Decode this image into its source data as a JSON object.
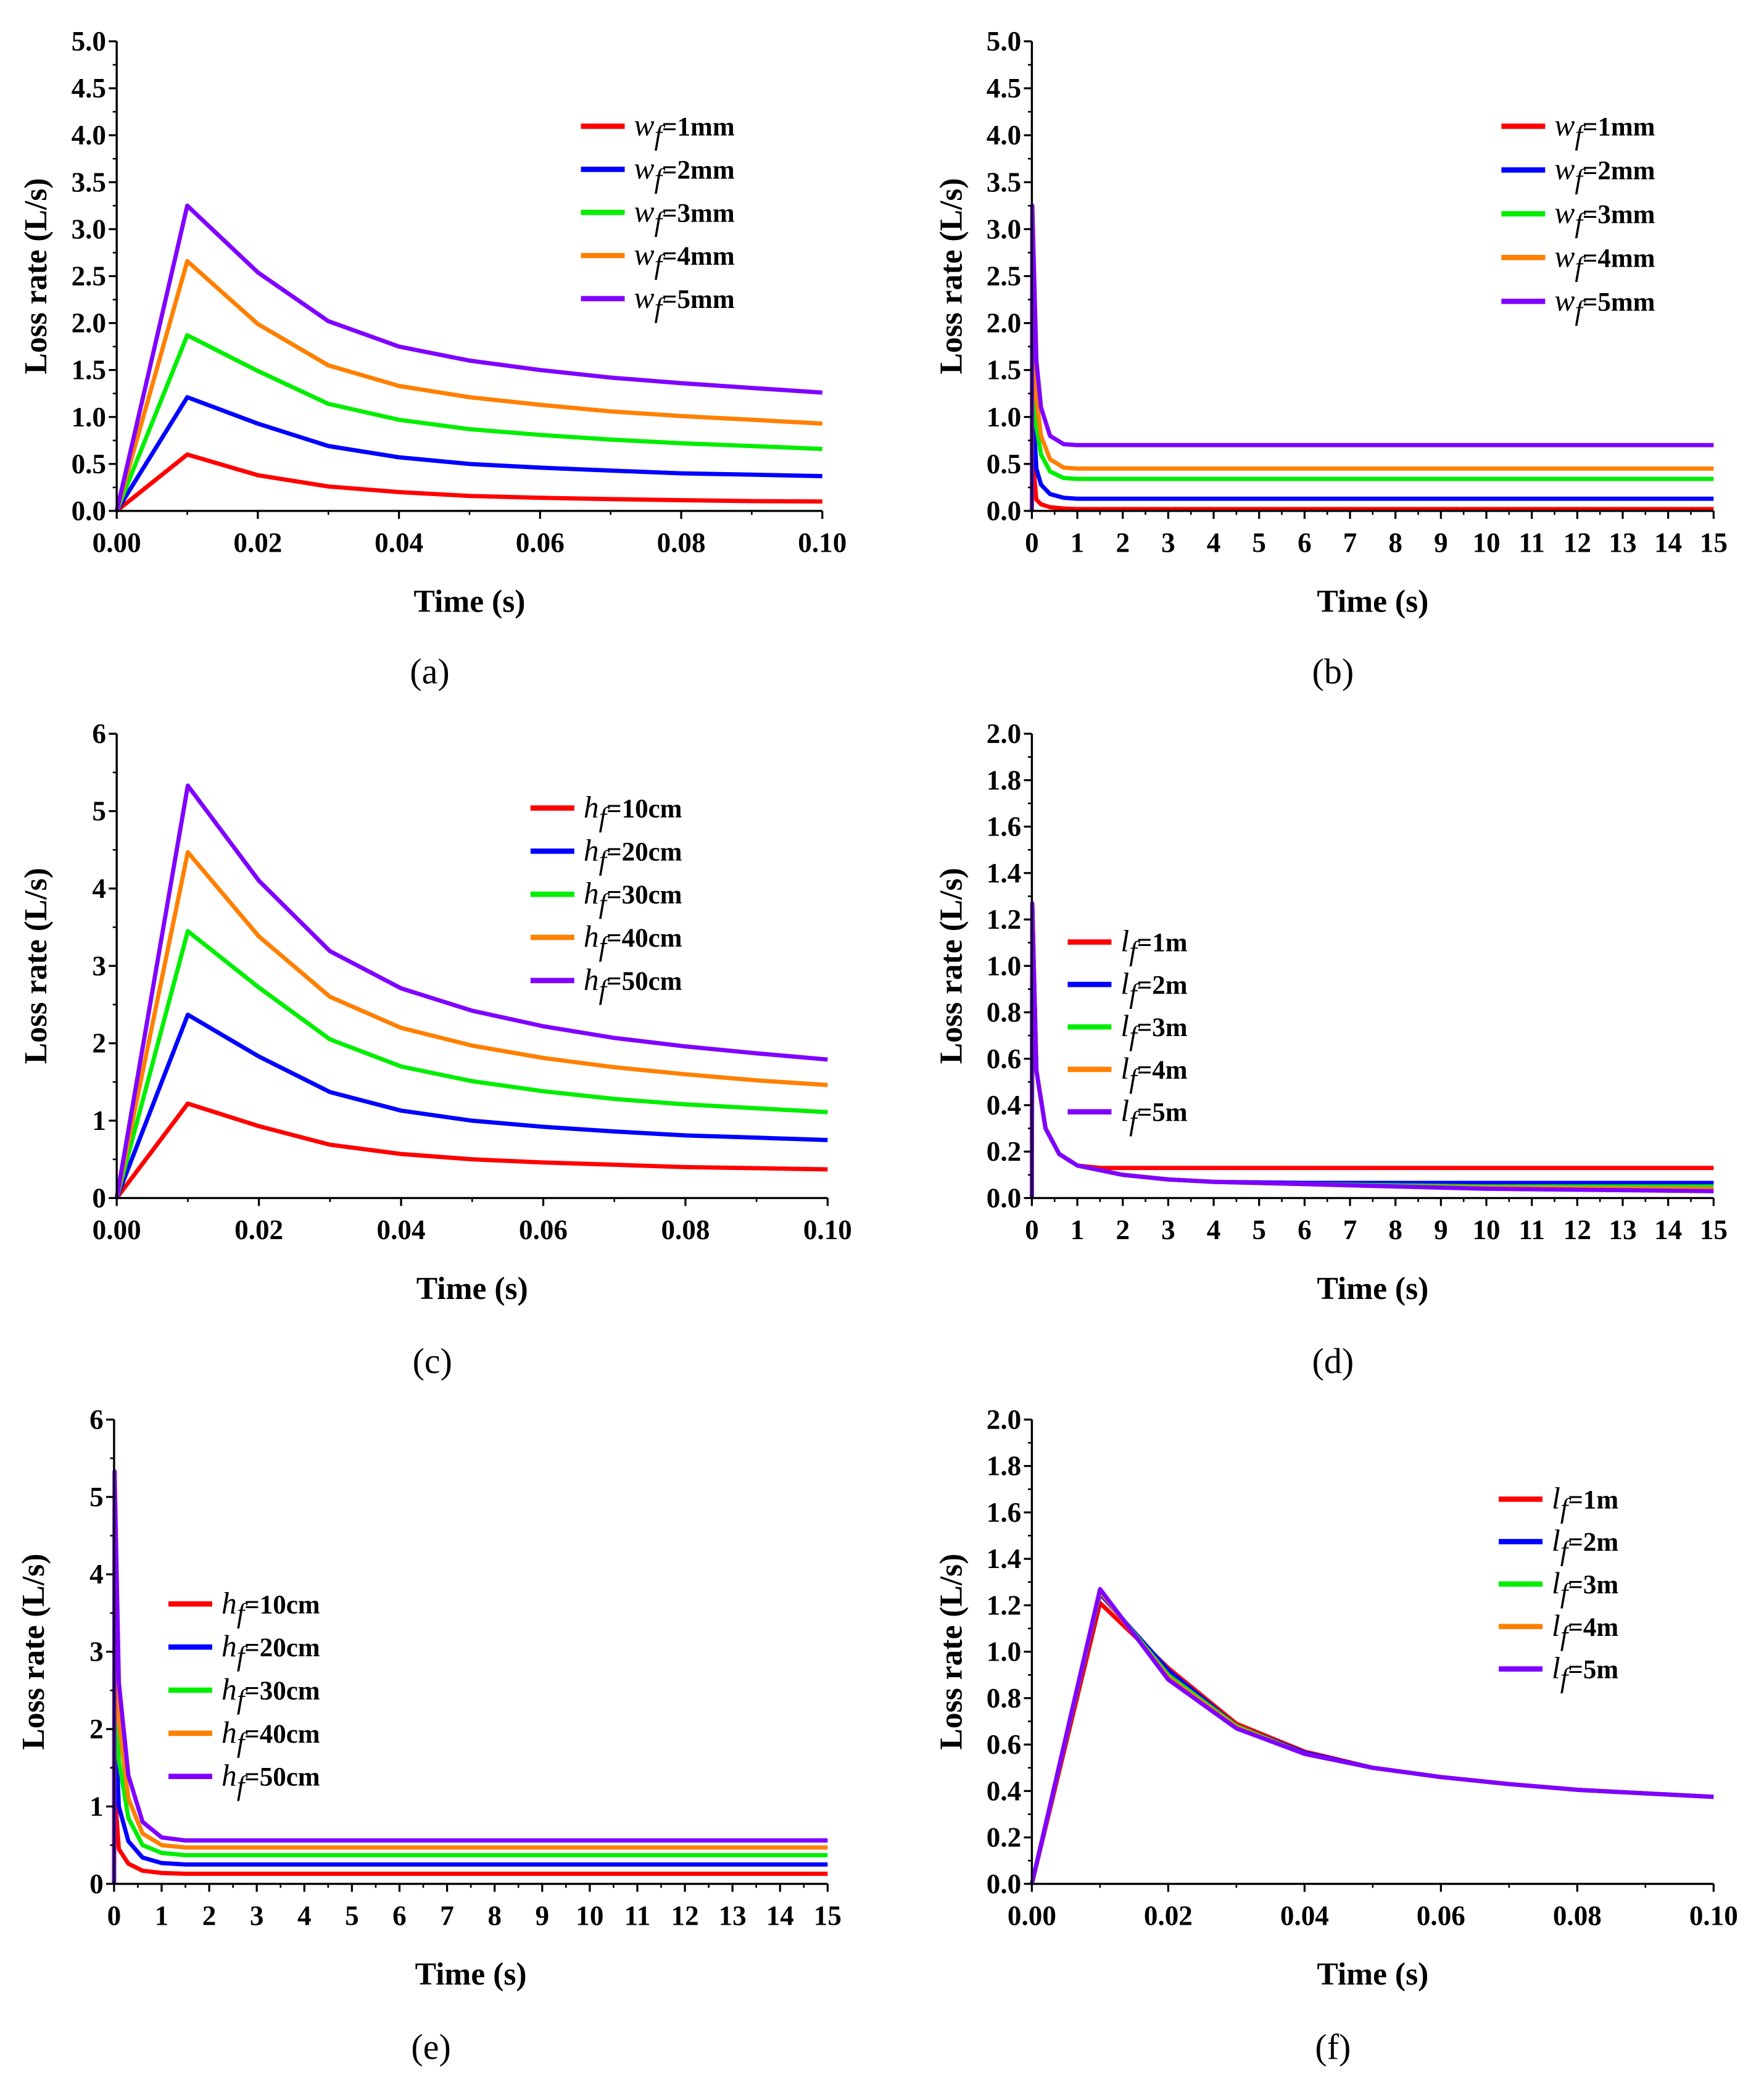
{
  "colors": [
    "#ff0000",
    "#0000ff",
    "#00ee00",
    "#ff8000",
    "#8000ff"
  ],
  "chart_data": [
    {
      "panel": "(a)",
      "type": "line",
      "xlabel": "Time (s)",
      "ylabel": "Loss rate (L/s)",
      "xlim": [
        0,
        0.1
      ],
      "ylim": [
        0,
        5
      ],
      "xticks": [
        "0.00",
        "0.02",
        "0.04",
        "0.06",
        "0.08",
        "0.10"
      ],
      "yticks": [
        "0.0",
        "0.5",
        "1.0",
        "1.5",
        "2.0",
        "2.5",
        "3.0",
        "3.5",
        "4.0",
        "4.5",
        "5.0"
      ],
      "legend_position": "top-right",
      "x": [
        0,
        0.01,
        0.02,
        0.03,
        0.04,
        0.05,
        0.06,
        0.07,
        0.08,
        0.09,
        0.1
      ],
      "series": [
        {
          "var": "w",
          "sub": "f",
          "suffix": "=1mm",
          "values": [
            0,
            0.6,
            0.38,
            0.26,
            0.2,
            0.16,
            0.14,
            0.125,
            0.115,
            0.105,
            0.1
          ]
        },
        {
          "var": "w",
          "sub": "f",
          "suffix": "=2mm",
          "values": [
            0,
            1.21,
            0.93,
            0.69,
            0.57,
            0.5,
            0.46,
            0.43,
            0.4,
            0.385,
            0.37
          ]
        },
        {
          "var": "w",
          "sub": "f",
          "suffix": "=3mm",
          "values": [
            0,
            1.87,
            1.49,
            1.14,
            0.97,
            0.87,
            0.81,
            0.76,
            0.72,
            0.69,
            0.66
          ]
        },
        {
          "var": "w",
          "sub": "f",
          "suffix": "=4mm",
          "values": [
            0,
            2.66,
            1.99,
            1.55,
            1.33,
            1.21,
            1.13,
            1.06,
            1.01,
            0.97,
            0.93
          ]
        },
        {
          "var": "w",
          "sub": "f",
          "suffix": "=5mm",
          "values": [
            0,
            3.25,
            2.54,
            2.02,
            1.75,
            1.6,
            1.5,
            1.42,
            1.36,
            1.31,
            1.26
          ]
        }
      ]
    },
    {
      "panel": "(b)",
      "type": "line",
      "xlabel": "Time (s)",
      "ylabel": "Loss rate (L/s)",
      "xlim": [
        0,
        15
      ],
      "ylim": [
        0,
        5
      ],
      "xticks": [
        "0",
        "1",
        "2",
        "3",
        "4",
        "5",
        "6",
        "7",
        "8",
        "9",
        "10",
        "11",
        "12",
        "13",
        "14",
        "15"
      ],
      "yticks": [
        "0.0",
        "0.5",
        "1.0",
        "1.5",
        "2.0",
        "2.5",
        "3.0",
        "3.5",
        "4.0",
        "4.5",
        "5.0"
      ],
      "legend_position": "top-right",
      "x": [
        0,
        0.01,
        0.1,
        0.2,
        0.4,
        0.7,
        1,
        1.5,
        15
      ],
      "series": [
        {
          "var": "w",
          "sub": "f",
          "suffix": "=1mm",
          "values": [
            0,
            0.6,
            0.12,
            0.07,
            0.04,
            0.025,
            0.02,
            0.02,
            0.02
          ]
        },
        {
          "var": "w",
          "sub": "f",
          "suffix": "=2mm",
          "values": [
            0,
            1.21,
            0.45,
            0.28,
            0.18,
            0.14,
            0.13,
            0.13,
            0.13
          ]
        },
        {
          "var": "w",
          "sub": "f",
          "suffix": "=3mm",
          "values": [
            0,
            1.87,
            0.9,
            0.6,
            0.42,
            0.35,
            0.34,
            0.34,
            0.34
          ]
        },
        {
          "var": "w",
          "sub": "f",
          "suffix": "=4mm",
          "values": [
            0,
            2.66,
            1.2,
            0.8,
            0.55,
            0.46,
            0.45,
            0.45,
            0.45
          ]
        },
        {
          "var": "w",
          "sub": "f",
          "suffix": "=5mm",
          "values": [
            0,
            3.25,
            1.6,
            1.1,
            0.8,
            0.71,
            0.7,
            0.7,
            0.7
          ]
        }
      ]
    },
    {
      "panel": "(c)",
      "type": "line",
      "xlabel": "Time (s)",
      "ylabel": "Loss rate (L/s)",
      "xlim": [
        0,
        0.1
      ],
      "ylim": [
        0,
        6
      ],
      "xticks": [
        "0.00",
        "0.02",
        "0.04",
        "0.06",
        "0.08",
        "0.10"
      ],
      "yticks": [
        "0",
        "1",
        "2",
        "3",
        "4",
        "5",
        "6"
      ],
      "legend_position": "top-right",
      "x": [
        0,
        0.01,
        0.02,
        0.03,
        0.04,
        0.05,
        0.06,
        0.07,
        0.08,
        0.09,
        0.1
      ],
      "series": [
        {
          "var": "h",
          "sub": "f",
          "suffix": "=10cm",
          "values": [
            0,
            1.22,
            0.93,
            0.69,
            0.57,
            0.5,
            0.46,
            0.43,
            0.4,
            0.385,
            0.37
          ]
        },
        {
          "var": "h",
          "sub": "f",
          "suffix": "=20cm",
          "values": [
            0,
            2.37,
            1.83,
            1.37,
            1.13,
            1.0,
            0.92,
            0.86,
            0.81,
            0.78,
            0.75
          ]
        },
        {
          "var": "h",
          "sub": "f",
          "suffix": "=30cm",
          "values": [
            0,
            3.45,
            2.72,
            2.05,
            1.7,
            1.51,
            1.38,
            1.28,
            1.21,
            1.16,
            1.11
          ]
        },
        {
          "var": "h",
          "sub": "f",
          "suffix": "=40cm",
          "values": [
            0,
            4.47,
            3.38,
            2.6,
            2.2,
            1.97,
            1.81,
            1.69,
            1.6,
            1.52,
            1.46
          ]
        },
        {
          "var": "h",
          "sub": "f",
          "suffix": "=50cm",
          "values": [
            0,
            5.33,
            4.1,
            3.19,
            2.71,
            2.42,
            2.22,
            2.07,
            1.96,
            1.87,
            1.79
          ]
        }
      ]
    },
    {
      "panel": "(d)",
      "type": "line",
      "xlabel": "Time (s)",
      "ylabel": "Loss rate (L/s)",
      "xlim": [
        0,
        15
      ],
      "ylim": [
        0,
        2
      ],
      "xticks": [
        "0",
        "1",
        "2",
        "3",
        "4",
        "5",
        "6",
        "7",
        "8",
        "9",
        "10",
        "11",
        "12",
        "13",
        "14",
        "15"
      ],
      "yticks": [
        "0.0",
        "0.2",
        "0.4",
        "0.6",
        "0.8",
        "1.0",
        "1.2",
        "1.4",
        "1.6",
        "1.8",
        "2.0"
      ],
      "legend_position": "center-left",
      "x": [
        0,
        0.01,
        0.1,
        0.3,
        0.6,
        1,
        1.5,
        2,
        3,
        4,
        6,
        8,
        10,
        15
      ],
      "series": [
        {
          "var": "l",
          "sub": "f",
          "suffix": "=1m",
          "values": [
            0,
            1.21,
            0.55,
            0.3,
            0.19,
            0.14,
            0.13,
            0.13,
            0.13,
            0.13,
            0.13,
            0.13,
            0.13,
            0.13
          ]
        },
        {
          "var": "l",
          "sub": "f",
          "suffix": "=2m",
          "values": [
            0,
            1.25,
            0.55,
            0.3,
            0.19,
            0.14,
            0.12,
            0.1,
            0.08,
            0.07,
            0.065,
            0.065,
            0.065,
            0.065
          ]
        },
        {
          "var": "l",
          "sub": "f",
          "suffix": "=3m",
          "values": [
            0,
            1.26,
            0.55,
            0.3,
            0.19,
            0.14,
            0.12,
            0.1,
            0.08,
            0.07,
            0.06,
            0.055,
            0.05,
            0.05
          ]
        },
        {
          "var": "l",
          "sub": "f",
          "suffix": "=4m",
          "values": [
            0,
            1.26,
            0.55,
            0.3,
            0.19,
            0.14,
            0.12,
            0.1,
            0.08,
            0.07,
            0.06,
            0.05,
            0.045,
            0.04
          ]
        },
        {
          "var": "l",
          "sub": "f",
          "suffix": "=5m",
          "values": [
            0,
            1.27,
            0.55,
            0.3,
            0.19,
            0.14,
            0.12,
            0.1,
            0.08,
            0.07,
            0.06,
            0.05,
            0.04,
            0.03
          ]
        }
      ]
    },
    {
      "panel": "(e)",
      "type": "line",
      "xlabel": "Time (s)",
      "ylabel": "Loss rate (L/s)",
      "xlim": [
        0,
        15
      ],
      "ylim": [
        0,
        6
      ],
      "xticks": [
        "0",
        "1",
        "2",
        "3",
        "4",
        "5",
        "6",
        "7",
        "8",
        "9",
        "10",
        "11",
        "12",
        "13",
        "14",
        "15"
      ],
      "yticks": [
        "0",
        "1",
        "2",
        "3",
        "4",
        "5",
        "6"
      ],
      "legend_position": "center-left",
      "x": [
        0,
        0.01,
        0.1,
        0.3,
        0.6,
        1,
        1.5,
        15
      ],
      "series": [
        {
          "var": "h",
          "sub": "f",
          "suffix": "=10cm",
          "values": [
            0,
            1.22,
            0.45,
            0.26,
            0.17,
            0.14,
            0.13,
            0.13
          ]
        },
        {
          "var": "h",
          "sub": "f",
          "suffix": "=20cm",
          "values": [
            0,
            2.37,
            1.0,
            0.55,
            0.34,
            0.27,
            0.25,
            0.25
          ]
        },
        {
          "var": "h",
          "sub": "f",
          "suffix": "=30cm",
          "values": [
            0,
            3.45,
            1.6,
            0.85,
            0.5,
            0.4,
            0.37,
            0.37
          ]
        },
        {
          "var": "h",
          "sub": "f",
          "suffix": "=40cm",
          "values": [
            0,
            4.47,
            2.1,
            1.1,
            0.65,
            0.5,
            0.47,
            0.47
          ]
        },
        {
          "var": "h",
          "sub": "f",
          "suffix": "=50cm",
          "values": [
            0,
            5.33,
            2.6,
            1.4,
            0.8,
            0.6,
            0.56,
            0.56
          ]
        }
      ]
    },
    {
      "panel": "(f)",
      "type": "line",
      "xlabel": "Time (s)",
      "ylabel": "Loss rate (L/s)",
      "xlim": [
        0,
        0.1
      ],
      "ylim": [
        0,
        2
      ],
      "xticks": [
        "0.00",
        "0.02",
        "0.04",
        "0.06",
        "0.08",
        "0.10"
      ],
      "yticks": [
        "0.0",
        "0.2",
        "0.4",
        "0.6",
        "0.8",
        "1.0",
        "1.2",
        "1.4",
        "1.6",
        "1.8",
        "2.0"
      ],
      "legend_position": "top-right",
      "x": [
        0,
        0.01,
        0.02,
        0.03,
        0.04,
        0.05,
        0.06,
        0.07,
        0.08,
        0.09,
        0.1
      ],
      "series": [
        {
          "var": "l",
          "sub": "f",
          "suffix": "=1m",
          "values": [
            0,
            1.21,
            0.93,
            0.69,
            0.57,
            0.5,
            0.46,
            0.43,
            0.405,
            0.39,
            0.375
          ]
        },
        {
          "var": "l",
          "sub": "f",
          "suffix": "=2m",
          "values": [
            0,
            1.25,
            0.92,
            0.68,
            0.565,
            0.5,
            0.46,
            0.43,
            0.405,
            0.39,
            0.375
          ]
        },
        {
          "var": "l",
          "sub": "f",
          "suffix": "=3m",
          "values": [
            0,
            1.26,
            0.9,
            0.68,
            0.56,
            0.5,
            0.46,
            0.43,
            0.405,
            0.39,
            0.375
          ]
        },
        {
          "var": "l",
          "sub": "f",
          "suffix": "=4m",
          "values": [
            0,
            1.26,
            0.89,
            0.675,
            0.56,
            0.5,
            0.46,
            0.43,
            0.405,
            0.39,
            0.375
          ]
        },
        {
          "var": "l",
          "sub": "f",
          "suffix": "=5m",
          "values": [
            0,
            1.27,
            0.88,
            0.67,
            0.56,
            0.5,
            0.46,
            0.43,
            0.405,
            0.39,
            0.375
          ]
        }
      ]
    }
  ]
}
